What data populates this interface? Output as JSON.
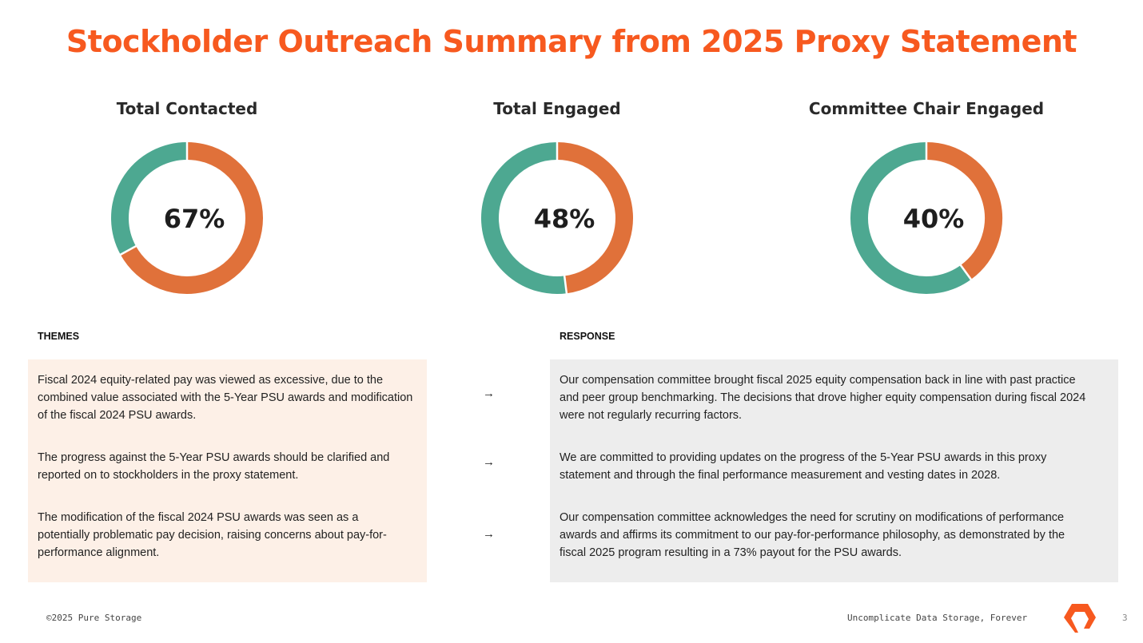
{
  "title": "Stockholder Outreach Summary from 2025 Proxy Statement",
  "colors": {
    "title": "#F7591F",
    "primary": "#E0713A",
    "remainder": "#4DA891",
    "themes_bg": "#FDF0E7",
    "response_bg": "#EDEDED"
  },
  "chart_data": [
    {
      "type": "pie",
      "style": "donut",
      "title": "Total Contacted",
      "value_label": "67%",
      "values": [
        67,
        33
      ],
      "colors": [
        "#E0713A",
        "#4DA891"
      ]
    },
    {
      "type": "pie",
      "style": "donut",
      "title": "Total Engaged",
      "value_label": "48%",
      "values": [
        48,
        52
      ],
      "colors": [
        "#E0713A",
        "#4DA891"
      ]
    },
    {
      "type": "pie",
      "style": "donut",
      "title": "Committee Chair Engaged",
      "value_label": "40%",
      "values": [
        40,
        60
      ],
      "colors": [
        "#E0713A",
        "#4DA891"
      ]
    }
  ],
  "themes_header": "THEMES",
  "response_header": "RESPONSE",
  "arrow": "→",
  "rows": [
    {
      "theme": "Fiscal 2024 equity-related pay was viewed as excessive, due to the combined value associated with the 5-Year PSU awards and modification of the fiscal 2024 PSU awards.",
      "response": "Our compensation committee brought fiscal 2025 equity compensation back in line with past practice and peer group benchmarking. The decisions that drove higher equity compensation during fiscal 2024 were not regularly recurring factors."
    },
    {
      "theme": "The progress against the 5-Year PSU awards should be clarified and reported on to stockholders in the proxy statement.",
      "response": "We are committed to providing updates on the progress of the 5-Year PSU awards in this proxy statement and through the final performance measurement and vesting dates in 2028."
    },
    {
      "theme": "The modification of the fiscal 2024 PSU awards was seen as a potentially problematic pay decision, raising concerns about pay-for-performance alignment.",
      "response": "Our compensation committee acknowledges the need for scrutiny on modifications of performance awards and affirms its commitment to our pay-for-performance philosophy, as demonstrated by the fiscal 2025 program resulting in a 73% payout for the PSU awards."
    }
  ],
  "footer": {
    "copyright": "©2025 Pure Storage",
    "tagline": "Uncomplicate Data Storage, Forever",
    "page": "3",
    "logo_icon": "pure-storage-logo"
  }
}
